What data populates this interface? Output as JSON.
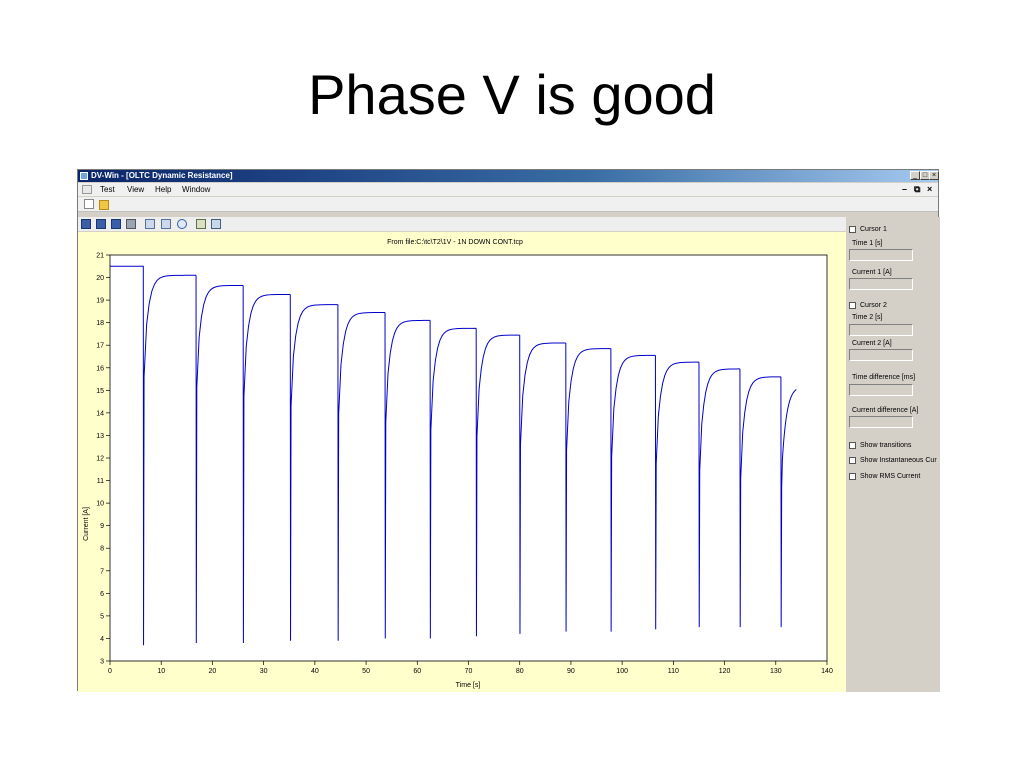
{
  "slide": {
    "title": "Phase V is good"
  },
  "window": {
    "title": "DV-Win - [OLTC Dynamic Resistance]",
    "menu": [
      "Test",
      "View",
      "Help",
      "Window"
    ],
    "controls": {
      "minimize": "_",
      "maximize": "□",
      "close": "×"
    },
    "mdi_controls": {
      "minimize": "–",
      "restore": "⧉",
      "close": "×"
    }
  },
  "toolbar": {
    "icons": [
      "new-file-icon",
      "open-folder-icon"
    ],
    "chart_icons": [
      "save-icon",
      "save-as-icon",
      "save-all-icon",
      "print-icon",
      "zoom-in-icon",
      "zoom-out-icon",
      "undo-icon",
      "export-icon",
      "copy-chart-icon"
    ]
  },
  "side_panel": {
    "cursor1_label": "Cursor 1",
    "time1_label": "Time 1 [s]",
    "current1_label": "Current 1 [A]",
    "cursor2_label": "Cursor 2",
    "time2_label": "Time 2 [s]",
    "current2_label": "Current 2 [A]",
    "time_diff_label": "Time difference [ms]",
    "current_diff_label": "Current difference [A]",
    "show_transitions": "Show transitions",
    "show_instant": "Show Instantaneous Cur",
    "show_rms": "Show RMS Current"
  },
  "colors": {
    "trace": "#0000cc",
    "plot_bg": "#ffffff",
    "frame_bg": "#ffffcc",
    "title_bar": "#0a246a"
  },
  "chart_data": {
    "type": "line",
    "title": "From file:C:\\tc\\T2\\1V - 1N DOWN CONT.tcp",
    "xlabel": "Time [s]",
    "ylabel": "Current [A]",
    "xlim": [
      0,
      140
    ],
    "ylim": [
      3,
      21
    ],
    "xticks": [
      0,
      10,
      20,
      30,
      40,
      50,
      60,
      70,
      80,
      90,
      100,
      110,
      120,
      130,
      140
    ],
    "yticks": [
      3,
      4,
      5,
      6,
      7,
      8,
      9,
      10,
      11,
      12,
      13,
      14,
      15,
      16,
      17,
      18,
      19,
      20,
      21
    ],
    "grid": false,
    "series": [
      {
        "initial_level": 20.5,
        "transitions": [
          {
            "t": 6.5,
            "dip": 3.7,
            "plateau": 20.1
          },
          {
            "t": 16.8,
            "dip": 3.8,
            "plateau": 19.65
          },
          {
            "t": 26.0,
            "dip": 3.8,
            "plateau": 19.25
          },
          {
            "t": 35.2,
            "dip": 3.9,
            "plateau": 18.8
          },
          {
            "t": 44.5,
            "dip": 3.9,
            "plateau": 18.45
          },
          {
            "t": 53.7,
            "dip": 4.0,
            "plateau": 18.1
          },
          {
            "t": 62.5,
            "dip": 4.0,
            "plateau": 17.75
          },
          {
            "t": 71.5,
            "dip": 4.1,
            "plateau": 17.45
          },
          {
            "t": 80.0,
            "dip": 4.2,
            "plateau": 17.1
          },
          {
            "t": 89.0,
            "dip": 4.3,
            "plateau": 16.85
          },
          {
            "t": 97.8,
            "dip": 4.3,
            "plateau": 16.55
          },
          {
            "t": 106.5,
            "dip": 4.4,
            "plateau": 16.25
          },
          {
            "t": 115.0,
            "dip": 4.5,
            "plateau": 15.95
          },
          {
            "t": 123.0,
            "dip": 4.5,
            "plateau": 15.6
          },
          {
            "t": 131.0,
            "dip": 4.5,
            "plateau": 15.2
          }
        ],
        "end_time": 134
      }
    ]
  }
}
